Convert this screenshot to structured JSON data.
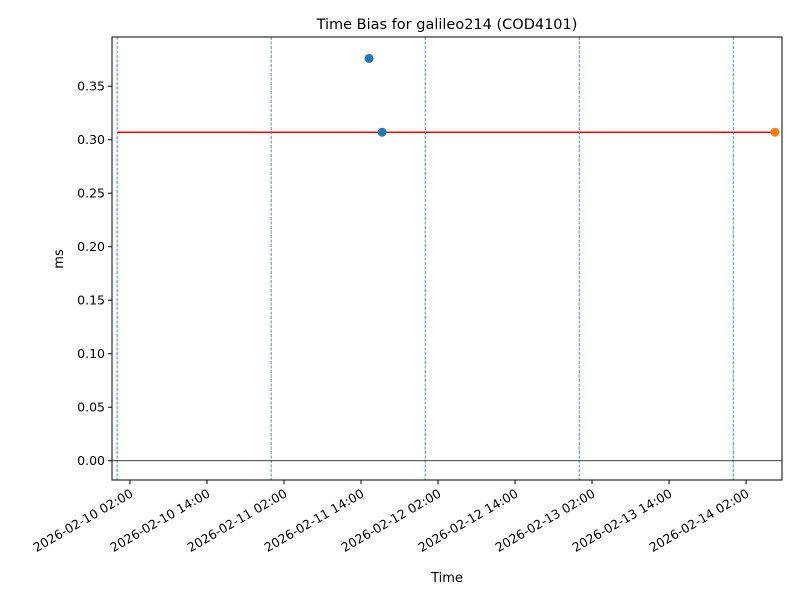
{
  "chart_data": {
    "type": "scatter",
    "title": "Time Bias for galileo214 (COD4101)",
    "xlabel": "Time",
    "ylabel": "ms",
    "xlim": [
      "2026-02-09T23:12",
      "2026-02-14T07:36"
    ],
    "ylim": [
      -0.018,
      0.396
    ],
    "grid": false,
    "yticks": [
      "0.00",
      "0.05",
      "0.10",
      "0.15",
      "0.20",
      "0.25",
      "0.30",
      "0.35"
    ],
    "xticks": [
      "2026-02-10 02:00",
      "2026-02-10 14:00",
      "2026-02-11 02:00",
      "2026-02-11 14:00",
      "2026-02-12 02:00",
      "2026-02-12 14:00",
      "2026-02-13 02:00",
      "2026-02-13 14:00",
      "2026-02-14 02:00"
    ],
    "day_lines": [
      "2026-02-10T00:00",
      "2026-02-11T00:00",
      "2026-02-12T00:00",
      "2026-02-13T00:00",
      "2026-02-14T00:00"
    ],
    "zero_line": 0,
    "series": [
      {
        "color": "#1f77b4",
        "points": [
          {
            "x": "2026-02-11T15:15",
            "y": 0.376
          },
          {
            "x": "2026-02-11T17:18",
            "y": 0.307
          }
        ]
      },
      {
        "color": "#ff7f0e",
        "points": [
          {
            "x": "2026-02-14T06:30",
            "y": 0.307
          }
        ]
      }
    ],
    "reference_line": {
      "color": "#ff0000",
      "y": 0.307,
      "x_start": "2026-02-10T00:00",
      "x_end": "2026-02-14T06:30"
    }
  }
}
